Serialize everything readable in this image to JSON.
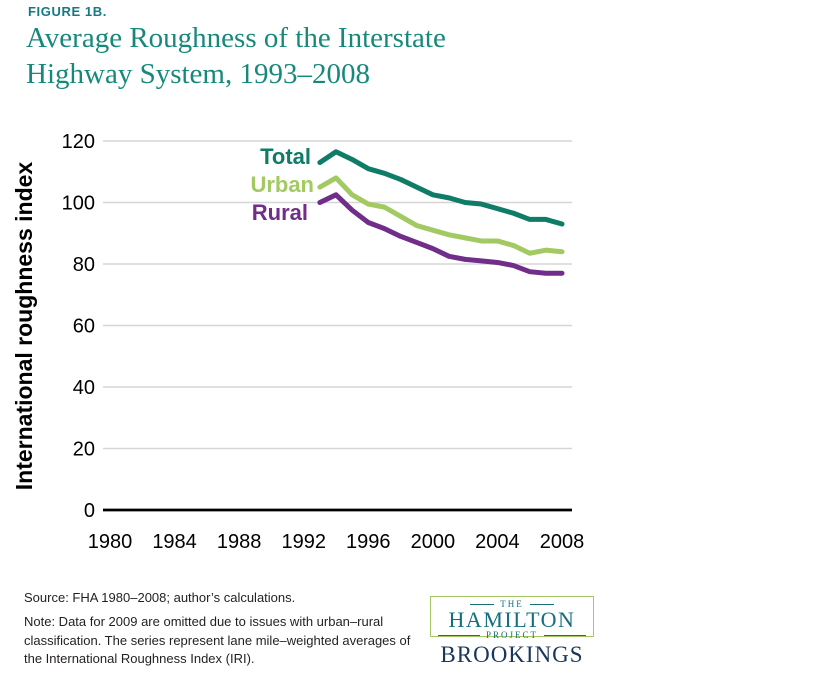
{
  "figure_label": "FIGURE 1B.",
  "title": {
    "line1": "Average Roughness of the Interstate",
    "line2": "Highway System, 1993–2008"
  },
  "chart_data": {
    "type": "line",
    "title": "Average Roughness of the Interstate Highway System, 1993–2008",
    "ylabel": "International roughness index",
    "xlabel": "",
    "x": [
      1993,
      1994,
      1995,
      1996,
      1997,
      1998,
      1999,
      2000,
      2001,
      2002,
      2003,
      2004,
      2005,
      2006,
      2007,
      2008
    ],
    "series": [
      {
        "name": "Total",
        "color": "#0e7c66",
        "values": [
          113,
          116.5,
          114,
          111,
          109.5,
          107.5,
          105,
          102.5,
          101.5,
          100,
          99.5,
          98,
          96.5,
          94.5,
          94.5,
          93
        ],
        "label_pos": {
          "x": 311,
          "y": 164
        }
      },
      {
        "name": "Urban",
        "color": "#a3ca62",
        "values": [
          105,
          108,
          102.5,
          99.5,
          98.5,
          95.5,
          92.5,
          91,
          89.5,
          88.5,
          87.5,
          87.5,
          86,
          83.5,
          84.5,
          84
        ],
        "label_pos": {
          "x": 314,
          "y": 192
        }
      },
      {
        "name": "Rural",
        "color": "#702d89",
        "values": [
          100,
          102.5,
          97.5,
          93.5,
          91.5,
          89,
          87,
          85,
          82.5,
          81.5,
          81,
          80.5,
          79.5,
          77.5,
          77,
          77
        ],
        "label_pos": {
          "x": 308,
          "y": 220
        }
      }
    ],
    "yticks": [
      0,
      20,
      40,
      60,
      80,
      100,
      120
    ],
    "xticks": [
      1980,
      1984,
      1988,
      1992,
      1996,
      2000,
      2004,
      2008
    ],
    "xlim": [
      1978.8,
      2009
    ],
    "ylim": [
      0,
      120
    ],
    "grid": true,
    "grid_color": "#d6d6d6",
    "axis_color": "#000000",
    "legend_position": "inline-labels"
  },
  "footer": {
    "source": "Source: FHA 1980–2008; author’s calculations.",
    "note": "Note: Data for 2009 are omitted due to issues with urban–rural classification. The series represent lane mile–weighted averages of the International Roughness Index (IRI)."
  },
  "logo": {
    "the": "THE",
    "hamilton": "HAMILTON",
    "project": "PROJECT",
    "brookings": "BROOKINGS"
  },
  "colors": {
    "figure_label": "#157985",
    "title": "#17897b",
    "total_line": "#0e7c66",
    "urban_line": "#a3ca62",
    "rural_line": "#702d89",
    "hamilton_teal": "#136f7e",
    "brookings_navy": "#17365c",
    "logo_border": "#a5c863"
  }
}
